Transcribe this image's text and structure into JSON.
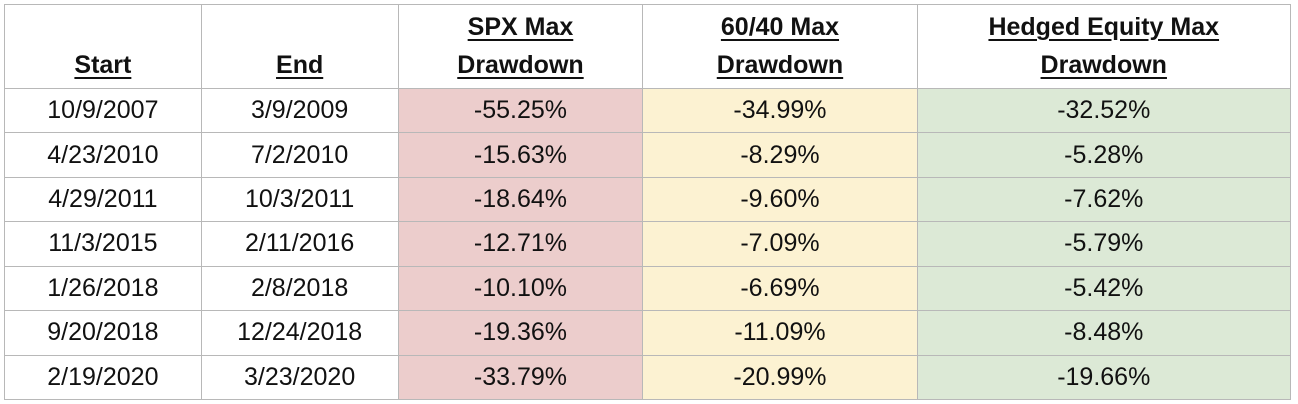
{
  "colors": {
    "spx_bg": "#eccdcc",
    "s6040_bg": "#fcf2d2",
    "hedge_bg": "#dce9d6",
    "border": "#b8b8b8"
  },
  "chart_data": {
    "type": "table",
    "columns": [
      "Start",
      "End",
      "SPX Max Drawdown",
      "60/40 Max Drawdown",
      "Hedged Equity Max Drawdown"
    ],
    "header_lines": [
      [
        "",
        "Start"
      ],
      [
        "",
        "End"
      ],
      [
        "SPX Max",
        "Drawdown"
      ],
      [
        "60/40 Max",
        "Drawdown"
      ],
      [
        "Hedged Equity Max",
        "Drawdown"
      ]
    ],
    "rows": [
      [
        "10/9/2007",
        "3/9/2009",
        "-55.25%",
        "-34.99%",
        "-32.52%"
      ],
      [
        "4/23/2010",
        "7/2/2010",
        "-15.63%",
        "-8.29%",
        "-5.28%"
      ],
      [
        "4/29/2011",
        "10/3/2011",
        "-18.64%",
        "-9.60%",
        "-7.62%"
      ],
      [
        "11/3/2015",
        "2/11/2016",
        "-12.71%",
        "-7.09%",
        "-5.79%"
      ],
      [
        "1/26/2018",
        "2/8/2018",
        "-10.10%",
        "-6.69%",
        "-5.42%"
      ],
      [
        "9/20/2018",
        "12/24/2018",
        "-19.36%",
        "-11.09%",
        "-8.48%"
      ],
      [
        "2/19/2020",
        "3/23/2020",
        "-33.79%",
        "-20.99%",
        "-19.66%"
      ]
    ]
  }
}
